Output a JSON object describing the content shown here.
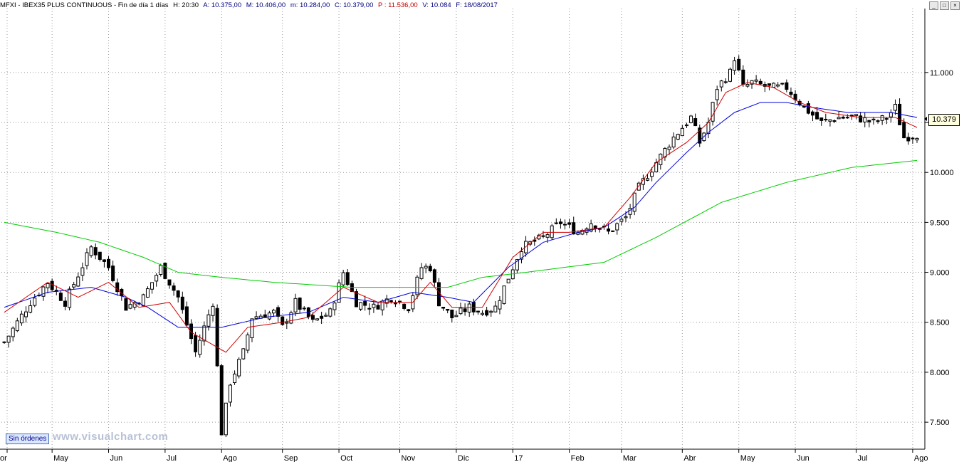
{
  "window": {
    "symbol": "MFXI - IBEX35 PLUS CONTINUOUS - Fin de día 1 días",
    "h": "H: 20:30",
    "a": "A: 10.375,00",
    "m_high": "M: 10.406,00",
    "m_low": "m: 10.284,00",
    "c": "C: 10.379,00",
    "p": "P : 11.536,00",
    "v": "V: 10.084",
    "f": "F: 18/08/2017",
    "buttons": [
      "_",
      "□",
      "×"
    ]
  },
  "status_button": "Sin órdenes",
  "watermark": "www.visualchart.com",
  "last_price": "10.379",
  "colors": {
    "title_black": "#000000",
    "title_navy": "#000080",
    "title_red": "#c00000",
    "candle": "#000000",
    "ma_fast": "#d00000",
    "ma_mid": "#0000dd",
    "ma_slow": "#00cc00",
    "grid": "#9a9a9a"
  },
  "chart_data": {
    "type": "candlestick",
    "y_ticks": [
      {
        "v": 11000,
        "label": "11.000"
      },
      {
        "v": 10500,
        "label": "10.500"
      },
      {
        "v": 10000,
        "label": "10.000"
      },
      {
        "v": 9500,
        "label": "9.500"
      },
      {
        "v": 9000,
        "label": "9.000"
      },
      {
        "v": 8500,
        "label": "8.500"
      },
      {
        "v": 8000,
        "label": "8.000"
      },
      {
        "v": 7500,
        "label": "7.500"
      }
    ],
    "ylim": [
      7230,
      11640
    ],
    "x_months": [
      "or",
      "May",
      "Jun",
      "Jul",
      "Ago",
      "Sep",
      "Oct",
      "Nov",
      "Dic",
      "17",
      "Feb",
      "Mar",
      "Abr",
      "May",
      "Jun",
      "Jul",
      "Ago"
    ],
    "close_path": [
      [
        0,
        8300
      ],
      [
        6,
        8700
      ],
      [
        10,
        8900
      ],
      [
        14,
        8700
      ],
      [
        20,
        9250
      ],
      [
        24,
        9050
      ],
      [
        28,
        8650
      ],
      [
        32,
        8750
      ],
      [
        36,
        9050
      ],
      [
        40,
        8750
      ],
      [
        44,
        8200
      ],
      [
        48,
        8700
      ],
      [
        50,
        7400
      ],
      [
        52,
        7900
      ],
      [
        55,
        8200
      ],
      [
        57,
        8550
      ],
      [
        62,
        8600
      ],
      [
        64,
        8450
      ],
      [
        67,
        8700
      ],
      [
        71,
        8500
      ],
      [
        75,
        8600
      ],
      [
        78,
        9000
      ],
      [
        81,
        8700
      ],
      [
        85,
        8650
      ],
      [
        89,
        8750
      ],
      [
        93,
        8650
      ],
      [
        96,
        9050
      ],
      [
        98,
        9050
      ],
      [
        100,
        8700
      ],
      [
        103,
        8550
      ],
      [
        107,
        8650
      ],
      [
        110,
        8600
      ],
      [
        113,
        8650
      ],
      [
        116,
        8950
      ],
      [
        119,
        9250
      ],
      [
        124,
        9350
      ],
      [
        128,
        9500
      ],
      [
        132,
        9400
      ],
      [
        135,
        9500
      ],
      [
        139,
        9400
      ],
      [
        143,
        9550
      ],
      [
        146,
        9850
      ],
      [
        150,
        10100
      ],
      [
        154,
        10350
      ],
      [
        158,
        10550
      ],
      [
        160,
        10300
      ],
      [
        162,
        10500
      ],
      [
        164,
        10850
      ],
      [
        167,
        11000
      ],
      [
        168,
        11150
      ],
      [
        170,
        10850
      ],
      [
        172,
        10900
      ],
      [
        176,
        10850
      ],
      [
        180,
        10850
      ],
      [
        184,
        10650
      ],
      [
        188,
        10500
      ],
      [
        192,
        10550
      ],
      [
        196,
        10550
      ],
      [
        200,
        10500
      ],
      [
        203,
        10550
      ],
      [
        205,
        10650
      ],
      [
        207,
        10350
      ],
      [
        210,
        10379
      ]
    ],
    "ma_fast": [
      [
        0,
        8600
      ],
      [
        10,
        8900
      ],
      [
        17,
        8750
      ],
      [
        24,
        8900
      ],
      [
        31,
        8650
      ],
      [
        38,
        8700
      ],
      [
        43,
        8400
      ],
      [
        51,
        8200
      ],
      [
        56,
        8450
      ],
      [
        64,
        8500
      ],
      [
        70,
        8550
      ],
      [
        78,
        8850
      ],
      [
        86,
        8700
      ],
      [
        94,
        8700
      ],
      [
        98,
        8900
      ],
      [
        103,
        8650
      ],
      [
        110,
        8650
      ],
      [
        117,
        9150
      ],
      [
        124,
        9400
      ],
      [
        130,
        9400
      ],
      [
        138,
        9450
      ],
      [
        144,
        9750
      ],
      [
        150,
        10100
      ],
      [
        157,
        10300
      ],
      [
        162,
        10500
      ],
      [
        166,
        10800
      ],
      [
        171,
        10900
      ],
      [
        177,
        10850
      ],
      [
        183,
        10700
      ],
      [
        189,
        10600
      ],
      [
        197,
        10550
      ],
      [
        205,
        10550
      ],
      [
        210,
        10450
      ]
    ],
    "ma_mid": [
      [
        0,
        8650
      ],
      [
        10,
        8800
      ],
      [
        20,
        8850
      ],
      [
        28,
        8750
      ],
      [
        33,
        8650
      ],
      [
        40,
        8450
      ],
      [
        50,
        8450
      ],
      [
        60,
        8550
      ],
      [
        70,
        8600
      ],
      [
        78,
        8750
      ],
      [
        86,
        8700
      ],
      [
        94,
        8800
      ],
      [
        102,
        8750
      ],
      [
        108,
        8700
      ],
      [
        116,
        9050
      ],
      [
        124,
        9300
      ],
      [
        132,
        9400
      ],
      [
        138,
        9450
      ],
      [
        145,
        9650
      ],
      [
        150,
        9900
      ],
      [
        157,
        10200
      ],
      [
        162,
        10400
      ],
      [
        168,
        10600
      ],
      [
        174,
        10700
      ],
      [
        180,
        10700
      ],
      [
        186,
        10650
      ],
      [
        194,
        10600
      ],
      [
        204,
        10600
      ],
      [
        210,
        10550
      ]
    ],
    "ma_slow": [
      [
        0,
        9500
      ],
      [
        12,
        9400
      ],
      [
        22,
        9300
      ],
      [
        32,
        9150
      ],
      [
        40,
        9000
      ],
      [
        50,
        8950
      ],
      [
        62,
        8900
      ],
      [
        80,
        8850
      ],
      [
        90,
        8850
      ],
      [
        102,
        8850
      ],
      [
        110,
        8950
      ],
      [
        120,
        9000
      ],
      [
        138,
        9100
      ],
      [
        150,
        9350
      ],
      [
        165,
        9700
      ],
      [
        180,
        9900
      ],
      [
        195,
        10050
      ],
      [
        210,
        10120
      ]
    ]
  }
}
